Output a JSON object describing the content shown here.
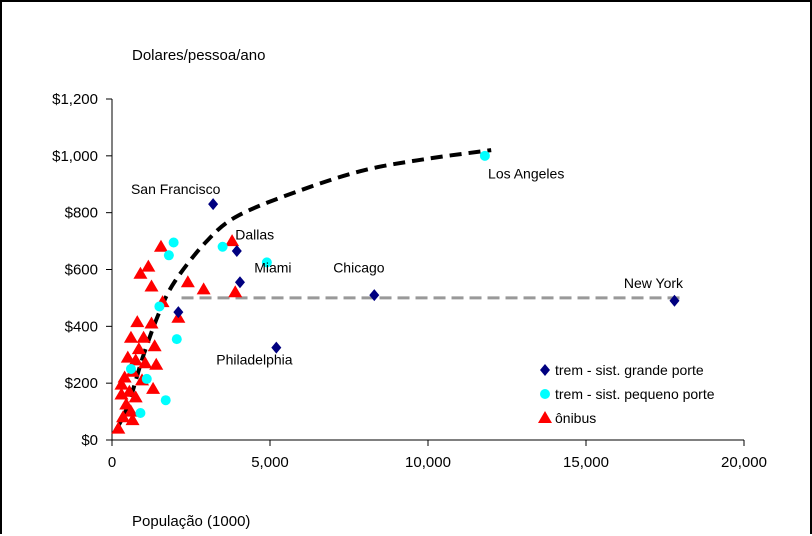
{
  "chart_data": {
    "type": "scatter",
    "ylabel": "Dolares/pessoa/ano",
    "xlabel": "População (1000)",
    "xlim": [
      0,
      20000
    ],
    "ylim": [
      0,
      1200
    ],
    "x_ticks": [
      0,
      5000,
      10000,
      15000,
      20000
    ],
    "x_tick_labels": [
      "0",
      "5,000",
      "10,000",
      "15,000",
      "20,000"
    ],
    "y_ticks": [
      0,
      200,
      400,
      600,
      800,
      1000,
      1200
    ],
    "y_tick_labels": [
      "$0",
      "$200",
      "$400",
      "$600",
      "$800",
      "$1,000",
      "$1,200"
    ],
    "legend_position": "bottom-right",
    "series": [
      {
        "name": "trem - sist. grande porte",
        "marker": "diamond",
        "color": "#000080",
        "points": [
          {
            "x": 3200,
            "y": 830
          },
          {
            "x": 3950,
            "y": 665
          },
          {
            "x": 4050,
            "y": 555
          },
          {
            "x": 2100,
            "y": 450
          },
          {
            "x": 5200,
            "y": 325
          },
          {
            "x": 8300,
            "y": 510
          },
          {
            "x": 17800,
            "y": 490
          }
        ]
      },
      {
        "name": "trem - sist. pequeno porte",
        "marker": "circle",
        "color": "#00ffff",
        "points": [
          {
            "x": 11800,
            "y": 1000
          },
          {
            "x": 1950,
            "y": 695
          },
          {
            "x": 4900,
            "y": 625
          },
          {
            "x": 3500,
            "y": 680
          },
          {
            "x": 1500,
            "y": 470
          },
          {
            "x": 2050,
            "y": 355
          },
          {
            "x": 1700,
            "y": 140
          },
          {
            "x": 900,
            "y": 95
          },
          {
            "x": 1100,
            "y": 215
          },
          {
            "x": 600,
            "y": 250
          },
          {
            "x": 1800,
            "y": 650
          }
        ]
      },
      {
        "name": "ônibus",
        "marker": "triangle",
        "color": "#ff0000",
        "points": [
          {
            "x": 1550,
            "y": 680
          },
          {
            "x": 1150,
            "y": 610
          },
          {
            "x": 900,
            "y": 585
          },
          {
            "x": 1250,
            "y": 540
          },
          {
            "x": 1600,
            "y": 485
          },
          {
            "x": 2400,
            "y": 555
          },
          {
            "x": 2900,
            "y": 530
          },
          {
            "x": 3800,
            "y": 700
          },
          {
            "x": 3900,
            "y": 520
          },
          {
            "x": 2100,
            "y": 430
          },
          {
            "x": 800,
            "y": 415
          },
          {
            "x": 1250,
            "y": 410
          },
          {
            "x": 600,
            "y": 360
          },
          {
            "x": 1000,
            "y": 360
          },
          {
            "x": 1350,
            "y": 330
          },
          {
            "x": 850,
            "y": 320
          },
          {
            "x": 500,
            "y": 290
          },
          {
            "x": 750,
            "y": 280
          },
          {
            "x": 1050,
            "y": 270
          },
          {
            "x": 1400,
            "y": 265
          },
          {
            "x": 650,
            "y": 240
          },
          {
            "x": 400,
            "y": 220
          },
          {
            "x": 950,
            "y": 210
          },
          {
            "x": 300,
            "y": 195
          },
          {
            "x": 550,
            "y": 170
          },
          {
            "x": 300,
            "y": 160
          },
          {
            "x": 750,
            "y": 150
          },
          {
            "x": 450,
            "y": 125
          },
          {
            "x": 600,
            "y": 100
          },
          {
            "x": 350,
            "y": 80
          },
          {
            "x": 650,
            "y": 70
          },
          {
            "x": 1300,
            "y": 180
          },
          {
            "x": 200,
            "y": 40
          }
        ]
      }
    ],
    "trend_curve": {
      "style": "black dashed",
      "points": [
        {
          "x": 100,
          "y": 30
        },
        {
          "x": 500,
          "y": 120
        },
        {
          "x": 1000,
          "y": 300
        },
        {
          "x": 1500,
          "y": 450
        },
        {
          "x": 2000,
          "y": 560
        },
        {
          "x": 3000,
          "y": 700
        },
        {
          "x": 4000,
          "y": 790
        },
        {
          "x": 6000,
          "y": 880
        },
        {
          "x": 8000,
          "y": 950
        },
        {
          "x": 10000,
          "y": 990
        },
        {
          "x": 12000,
          "y": 1020
        }
      ]
    },
    "reference_line": {
      "style": "gray dashed",
      "y": 500,
      "x_start": 2200,
      "x_end": 18100
    },
    "annotations": [
      {
        "text": "San Francisco",
        "x": 600,
        "y": 865
      },
      {
        "text": "Dallas",
        "x": 3900,
        "y": 705
      },
      {
        "text": "Miami",
        "x": 4500,
        "y": 590
      },
      {
        "text": "Chicago",
        "x": 7000,
        "y": 590
      },
      {
        "text": "Los Angeles",
        "x": 11900,
        "y": 920
      },
      {
        "text": "New York",
        "x": 16200,
        "y": 535
      },
      {
        "text": "Philadelphia",
        "x": 3300,
        "y": 265
      }
    ]
  }
}
